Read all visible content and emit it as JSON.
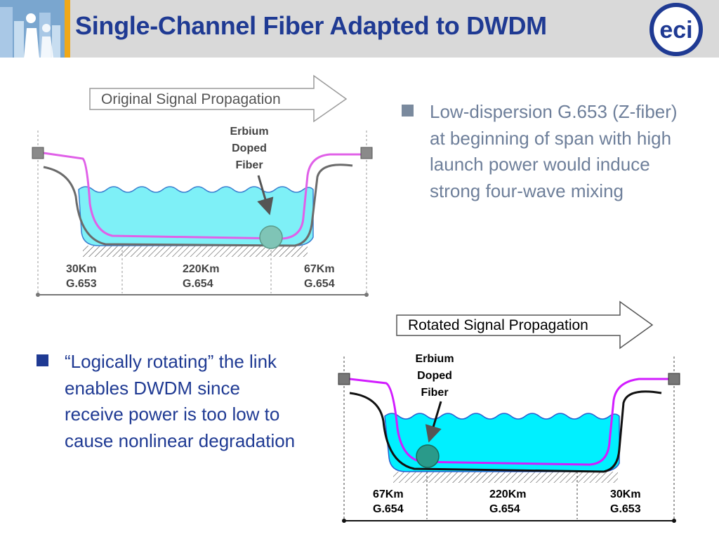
{
  "title": "Single-Channel Fiber Adapted to DWDM",
  "logo_text": "eci",
  "top_diagram": {
    "arrow_label": "Original Signal Propagation",
    "edf_label": [
      "Erbium",
      "Doped",
      "Fiber"
    ],
    "segments": [
      {
        "distance": "30Km",
        "fiber": "G.653"
      },
      {
        "distance": "220Km",
        "fiber": "G.654"
      },
      {
        "distance": "67Km",
        "fiber": "G.654"
      }
    ]
  },
  "bottom_diagram": {
    "arrow_label": "Rotated Signal Propagation",
    "edf_label": [
      "Erbium",
      "Doped",
      "Fiber"
    ],
    "segments": [
      {
        "distance": "67Km",
        "fiber": "G.654"
      },
      {
        "distance": "220Km",
        "fiber": "G.654"
      },
      {
        "distance": "30Km",
        "fiber": "G.653"
      }
    ]
  },
  "bullets": [
    {
      "text": "Low-dispersion G.653 (Z-fiber) at beginning of span with high launch power would induce strong four-wave mixing"
    },
    {
      "text": "“Logically rotating” the link enables DWDM since receive power is too low to cause nonlinear degradation"
    }
  ],
  "colors": {
    "title": "#1f3a93",
    "water": "#6ff0f7",
    "water_bright": "#00f0ff",
    "signal": "#e060e8",
    "signal_bright": "#d21cff",
    "edf": "#7fc4b6",
    "edf_dark": "#2a9a8a"
  }
}
